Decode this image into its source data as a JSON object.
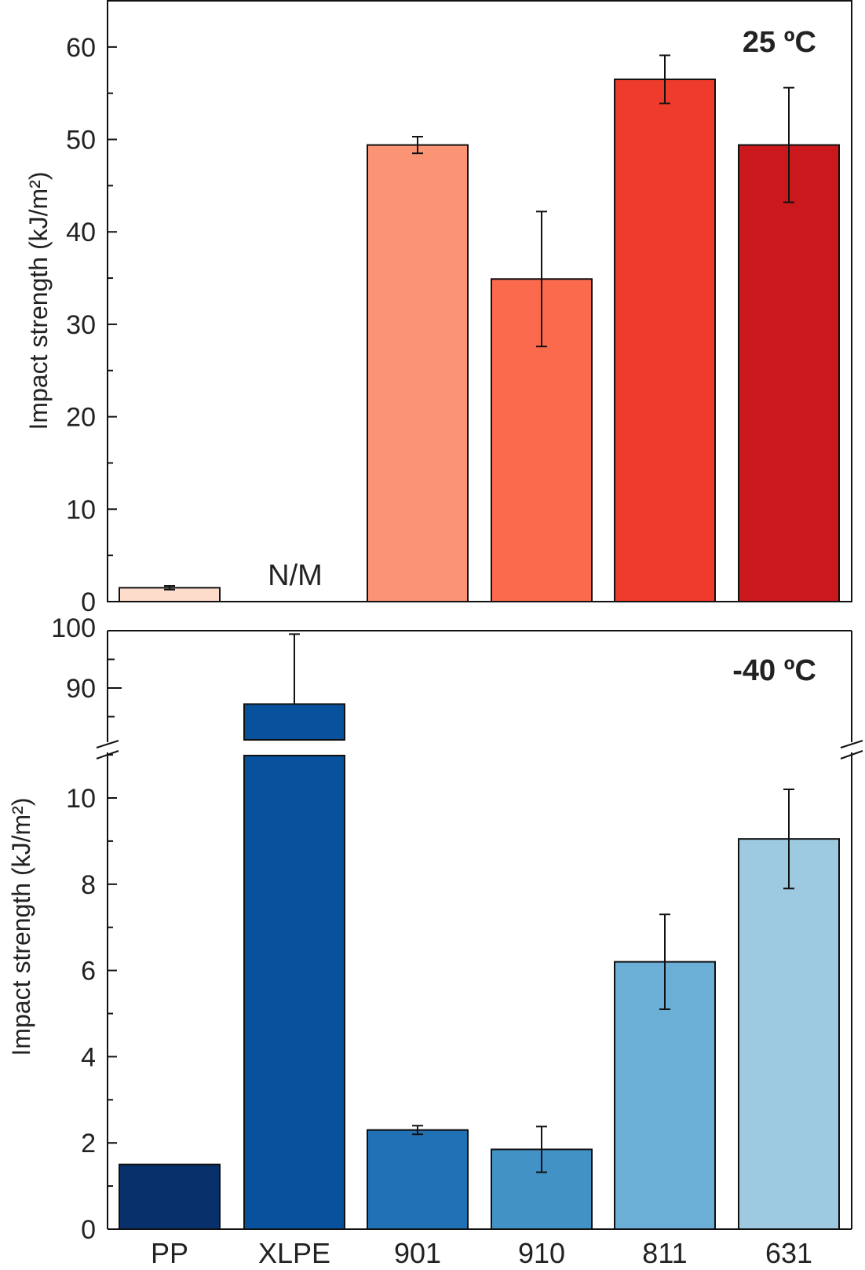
{
  "chart_data": [
    {
      "type": "bar",
      "title": "25 ºC",
      "xlabel": "",
      "ylabel": "Impact strength (kJ/m²)",
      "ylim": [
        0,
        65
      ],
      "yticks": [
        "0",
        "10",
        "20",
        "30",
        "40",
        "50",
        "60"
      ],
      "categories": [
        "PP",
        "XLPE",
        "901",
        "910",
        "811",
        "631"
      ],
      "values": [
        1.5,
        null,
        49.4,
        34.9,
        56.5,
        49.4
      ],
      "errors": [
        0.2,
        null,
        0.9,
        7.3,
        2.6,
        6.2
      ],
      "colors": [
        "#FDDCCB",
        "#FFFFFF",
        "#FA9474",
        "#FC6A4D",
        "#EF3B2C",
        "#CB181D"
      ],
      "annotations": [
        "N/M"
      ]
    },
    {
      "type": "bar",
      "title": "-40 ºC",
      "xlabel": "",
      "ylabel": "Impact strength (kJ/m²)",
      "ylim_lower": [
        0,
        11.2
      ],
      "ylim_upper": [
        80.8,
        100
      ],
      "yticks": [
        "0",
        "2",
        "4",
        "6",
        "8",
        "10",
        "90",
        "100"
      ],
      "axis_break": true,
      "categories": [
        "PP",
        "XLPE",
        "901",
        "910",
        "811",
        "631"
      ],
      "values": [
        1.5,
        87.2,
        2.3,
        1.85,
        6.2,
        9.05
      ],
      "errors": [
        0,
        12.2,
        0.1,
        0.53,
        1.1,
        1.15
      ],
      "colors": [
        "#08306B",
        "#08519C",
        "#2171B5",
        "#4292C6",
        "#6BAED6",
        "#9ECAE1"
      ]
    }
  ]
}
